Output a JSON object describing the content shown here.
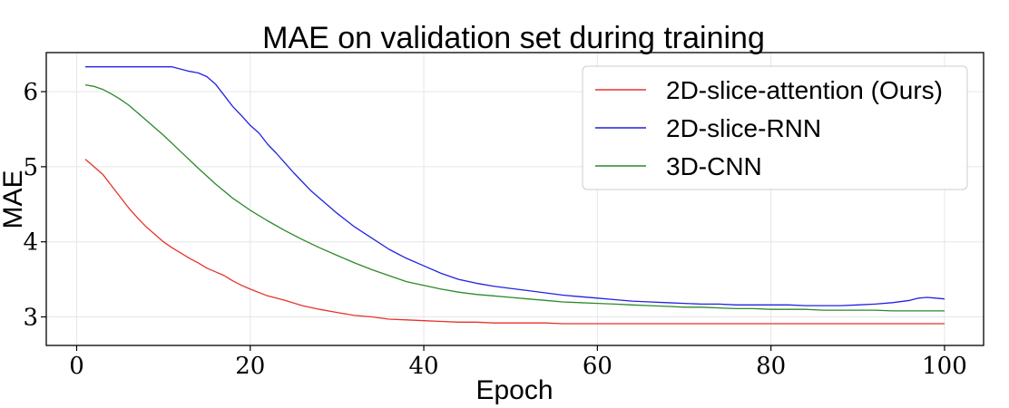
{
  "chart_data": {
    "type": "line",
    "title": "MAE on validation set during training",
    "xlabel": "Epoch",
    "ylabel": "MAE",
    "xlim": [
      -3.5,
      104.5
    ],
    "ylim": [
      2.62,
      6.52
    ],
    "xticks": [
      0,
      20,
      40,
      60,
      80,
      100
    ],
    "yticks": [
      3,
      4,
      5,
      6
    ],
    "grid": true,
    "legend_position": "top-right",
    "series": [
      {
        "name": "2D-slice-attention (Ours)",
        "color": "#e8322c",
        "x": [
          1,
          2,
          3,
          4,
          5,
          6,
          7,
          8,
          9,
          10,
          11,
          12,
          13,
          14,
          15,
          16,
          17,
          18,
          19,
          20,
          22,
          24,
          26,
          28,
          30,
          32,
          34,
          36,
          38,
          40,
          42,
          44,
          46,
          48,
          50,
          52,
          54,
          56,
          58,
          60,
          62,
          64,
          66,
          68,
          70,
          72,
          74,
          76,
          78,
          80,
          82,
          84,
          86,
          88,
          90,
          92,
          94,
          96,
          98,
          100
        ],
        "values": [
          5.1,
          5.0,
          4.9,
          4.75,
          4.6,
          4.45,
          4.32,
          4.2,
          4.1,
          4.0,
          3.92,
          3.85,
          3.78,
          3.72,
          3.65,
          3.6,
          3.55,
          3.48,
          3.42,
          3.37,
          3.28,
          3.22,
          3.15,
          3.1,
          3.06,
          3.02,
          3.0,
          2.97,
          2.96,
          2.95,
          2.94,
          2.93,
          2.93,
          2.92,
          2.92,
          2.92,
          2.92,
          2.91,
          2.91,
          2.91,
          2.91,
          2.91,
          2.91,
          2.91,
          2.91,
          2.91,
          2.91,
          2.91,
          2.91,
          2.91,
          2.91,
          2.91,
          2.91,
          2.91,
          2.91,
          2.91,
          2.91,
          2.91,
          2.91,
          2.91
        ]
      },
      {
        "name": "2D-slice-RNN",
        "color": "#2222e0",
        "x": [
          1,
          3,
          5,
          7,
          9,
          11,
          12,
          13,
          14,
          15,
          16,
          17,
          18,
          19,
          20,
          21,
          22,
          23,
          24,
          25,
          26,
          27,
          28,
          29,
          30,
          32,
          34,
          36,
          38,
          40,
          42,
          44,
          46,
          48,
          50,
          52,
          54,
          56,
          58,
          60,
          62,
          64,
          66,
          68,
          70,
          72,
          74,
          76,
          78,
          80,
          82,
          84,
          86,
          88,
          90,
          92,
          94,
          96,
          97,
          98,
          99,
          100
        ],
        "values": [
          6.33,
          6.33,
          6.33,
          6.33,
          6.33,
          6.33,
          6.3,
          6.27,
          6.25,
          6.2,
          6.1,
          5.95,
          5.8,
          5.68,
          5.55,
          5.45,
          5.3,
          5.18,
          5.05,
          4.92,
          4.8,
          4.68,
          4.58,
          4.48,
          4.38,
          4.2,
          4.05,
          3.9,
          3.78,
          3.68,
          3.58,
          3.5,
          3.45,
          3.41,
          3.38,
          3.35,
          3.32,
          3.29,
          3.27,
          3.25,
          3.23,
          3.21,
          3.2,
          3.19,
          3.18,
          3.17,
          3.17,
          3.16,
          3.16,
          3.16,
          3.16,
          3.15,
          3.15,
          3.15,
          3.16,
          3.17,
          3.19,
          3.22,
          3.25,
          3.26,
          3.25,
          3.24
        ]
      },
      {
        "name": "3D-CNN",
        "color": "#2a8a2a",
        "x": [
          1,
          2,
          3,
          4,
          5,
          6,
          8,
          10,
          12,
          14,
          16,
          18,
          20,
          22,
          24,
          26,
          28,
          30,
          32,
          34,
          36,
          38,
          40,
          42,
          44,
          46,
          48,
          50,
          52,
          54,
          56,
          58,
          60,
          62,
          64,
          66,
          68,
          70,
          72,
          74,
          76,
          78,
          80,
          82,
          84,
          86,
          88,
          90,
          92,
          94,
          96,
          98,
          100
        ],
        "values": [
          6.09,
          6.07,
          6.03,
          5.97,
          5.9,
          5.82,
          5.62,
          5.42,
          5.2,
          4.98,
          4.77,
          4.58,
          4.42,
          4.28,
          4.15,
          4.03,
          3.92,
          3.82,
          3.72,
          3.63,
          3.55,
          3.47,
          3.42,
          3.37,
          3.33,
          3.3,
          3.28,
          3.26,
          3.24,
          3.22,
          3.2,
          3.19,
          3.18,
          3.17,
          3.16,
          3.15,
          3.14,
          3.13,
          3.13,
          3.12,
          3.11,
          3.11,
          3.1,
          3.1,
          3.1,
          3.09,
          3.09,
          3.09,
          3.09,
          3.08,
          3.08,
          3.08,
          3.08
        ]
      }
    ]
  }
}
